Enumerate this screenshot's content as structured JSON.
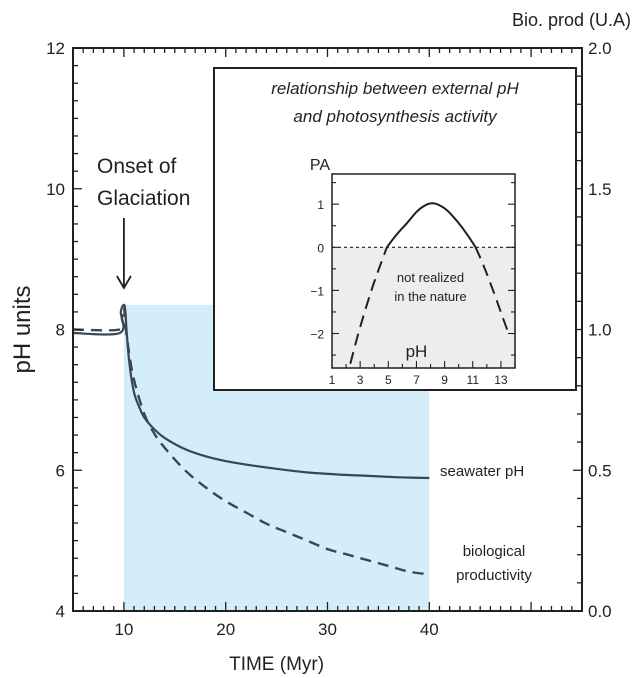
{
  "chart_data": [
    {
      "type": "line",
      "title": "",
      "xlabel": "TIME (Myr)",
      "ylabel": "pH units",
      "y2label": "Bio. prod (U.A)",
      "xlim": [
        5,
        55
      ],
      "ylim": [
        4,
        12
      ],
      "y2lim": [
        0.0,
        2.0
      ],
      "x_ticks": [
        "10",
        "20",
        "30",
        "40"
      ],
      "y_ticks": [
        "4",
        "6",
        "8",
        "10",
        "12"
      ],
      "y2_ticks": [
        "0.0",
        "0.5",
        "1.0",
        "1.5",
        "2.0"
      ],
      "grid": false,
      "shaded_region": {
        "x": [
          10,
          40
        ],
        "y": [
          4,
          8.35
        ],
        "color": "#d4eef9"
      },
      "annotation": {
        "text_lines": [
          "Onset of",
          "Glaciation"
        ],
        "x": 10
      },
      "series": [
        {
          "name": "seawater pH",
          "label_lines": [
            "seawater pH"
          ],
          "axis": "left",
          "style": "solid",
          "x": [
            5,
            9.6,
            9.7,
            10.0,
            10.15,
            10.3,
            10.6,
            11,
            11.5,
            12,
            13,
            14,
            16,
            18,
            20,
            22,
            25,
            28,
            31,
            34,
            37,
            40
          ],
          "y": [
            7.95,
            7.95,
            8.25,
            8.35,
            8.25,
            7.9,
            7.45,
            7.1,
            6.9,
            6.75,
            6.58,
            6.46,
            6.3,
            6.2,
            6.13,
            6.08,
            6.02,
            5.97,
            5.94,
            5.92,
            5.9,
            5.89
          ]
        },
        {
          "name": "biological productivity",
          "label_lines": [
            "biological",
            "productivity"
          ],
          "axis": "right",
          "style": "dashed",
          "x": [
            5,
            9.6,
            9.8,
            10.0,
            10.2,
            10.5,
            11,
            12,
            13,
            14,
            16,
            18,
            20,
            22,
            24,
            26,
            28,
            30,
            32,
            34,
            36,
            38,
            40
          ],
          "y": [
            1.0,
            1.0,
            1.04,
            1.08,
            1.0,
            0.92,
            0.82,
            0.7,
            0.63,
            0.58,
            0.5,
            0.44,
            0.39,
            0.35,
            0.31,
            0.28,
            0.25,
            0.22,
            0.2,
            0.18,
            0.16,
            0.14,
            0.13
          ]
        }
      ]
    },
    {
      "type": "line",
      "title": "relationship between external pH and photosynthesis activity",
      "title_lines": [
        "relationship between external pH",
        "and photosynthesis activity"
      ],
      "xlabel": "pH",
      "ylabel": "PA",
      "xlim": [
        1,
        14
      ],
      "ylim": [
        -2.8,
        1.7
      ],
      "x_ticks": [
        "1",
        "3",
        "5",
        "7",
        "9",
        "11",
        "13"
      ],
      "y_ticks": [
        "1",
        "0",
        "−1",
        "−2"
      ],
      "grid": false,
      "shaded_region": {
        "y_below": 0,
        "color": "#ededed"
      },
      "zero_line": "dashed",
      "region_note_lines": [
        "not realized",
        "in the nature"
      ],
      "series": [
        {
          "name": "",
          "style": "solid",
          "x": [
            4.9,
            5.6,
            6.3,
            7.0,
            7.6,
            8.1,
            8.6,
            9.2,
            9.9,
            10.6,
            11.2
          ],
          "y": [
            0.0,
            0.3,
            0.55,
            0.82,
            0.97,
            1.02,
            0.98,
            0.85,
            0.6,
            0.3,
            0.0
          ]
        },
        {
          "name": "",
          "style": "dashed",
          "x": [
            2.3,
            3.0,
            3.8,
            4.5,
            4.9
          ],
          "y": [
            -2.7,
            -1.85,
            -1.0,
            -0.35,
            0.0
          ]
        },
        {
          "name": "",
          "style": "dashed",
          "x": [
            11.2,
            11.8,
            12.5,
            13.1,
            13.6
          ],
          "y": [
            0.0,
            -0.45,
            -1.05,
            -1.6,
            -2.05
          ]
        }
      ]
    }
  ]
}
